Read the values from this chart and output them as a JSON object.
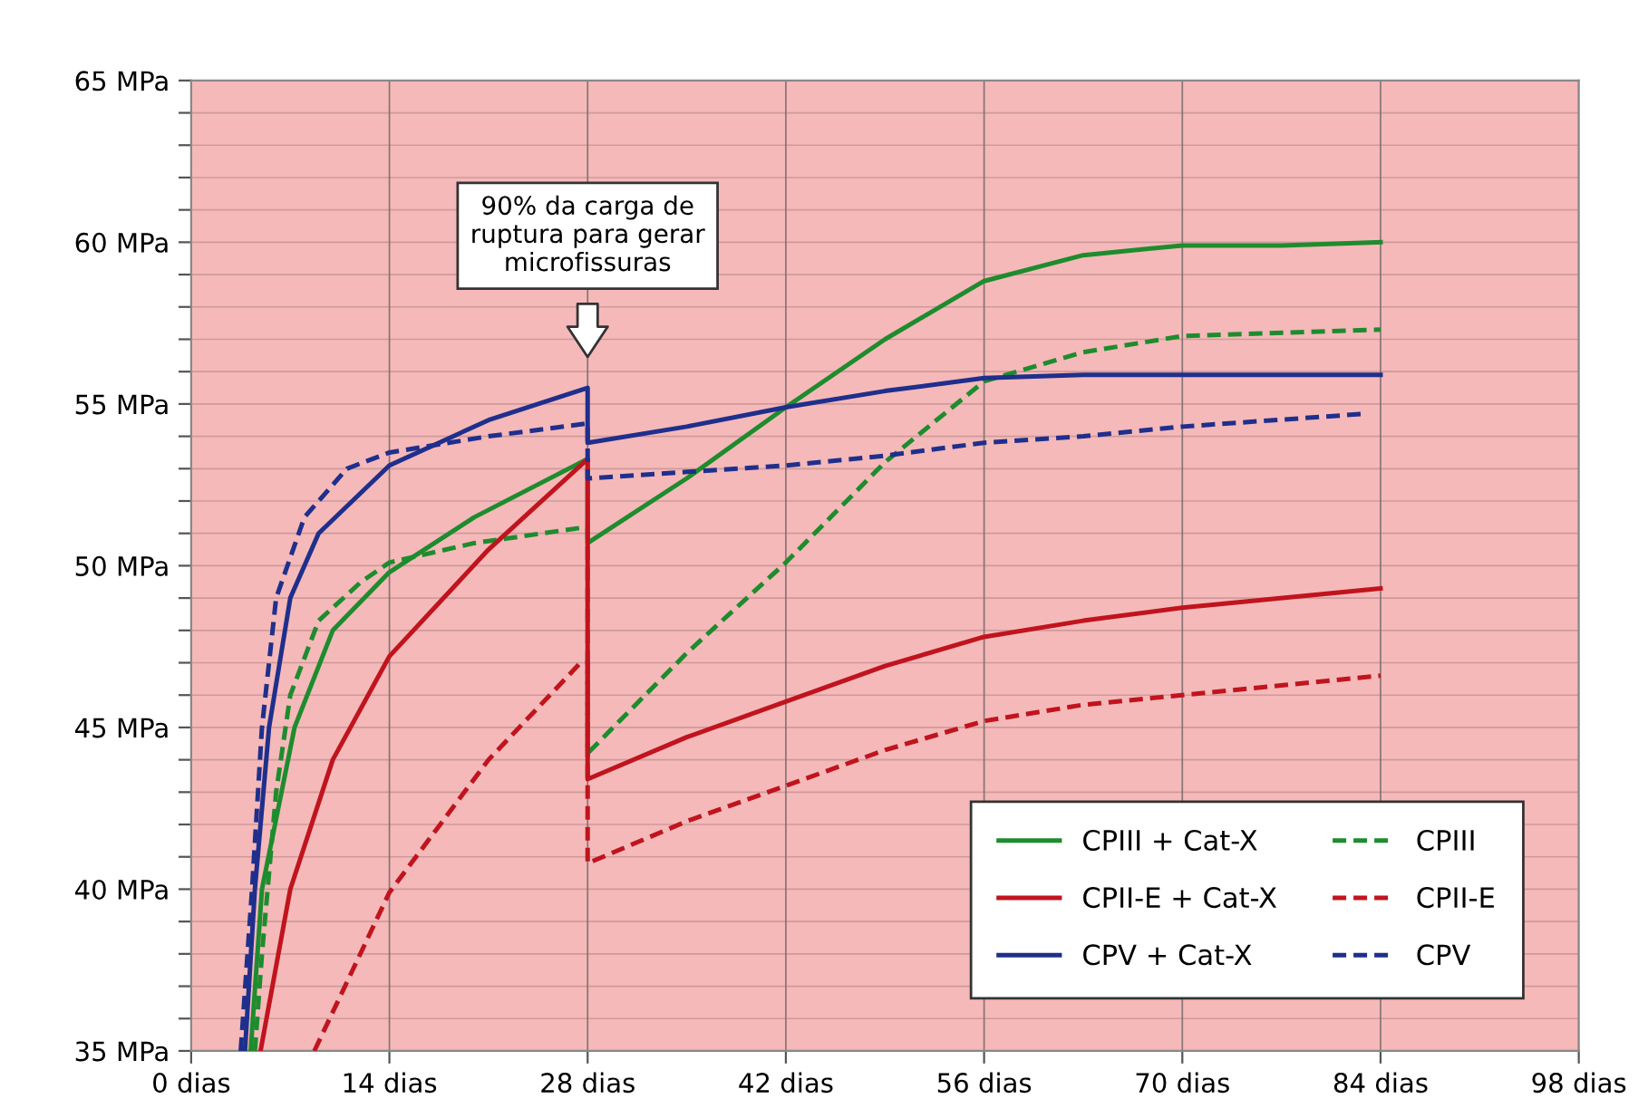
{
  "chart_data": {
    "type": "line",
    "xlim": [
      0,
      98
    ],
    "ylim": [
      35,
      65
    ],
    "xticks": [
      {
        "value": 0,
        "label": "0 dias"
      },
      {
        "value": 14,
        "label": "14 dias"
      },
      {
        "value": 28,
        "label": "28 dias"
      },
      {
        "value": 42,
        "label": "42 dias"
      },
      {
        "value": 56,
        "label": "56 dias"
      },
      {
        "value": 70,
        "label": "70 dias"
      },
      {
        "value": 84,
        "label": "84 dias"
      },
      {
        "value": 98,
        "label": "98 dias"
      }
    ],
    "yticks": [
      {
        "value": 35,
        "label": "35 MPa"
      },
      {
        "value": 36,
        "label": null
      },
      {
        "value": 37,
        "label": null
      },
      {
        "value": 38,
        "label": null
      },
      {
        "value": 39,
        "label": null
      },
      {
        "value": 40,
        "label": "40 MPa"
      },
      {
        "value": 41,
        "label": null
      },
      {
        "value": 42,
        "label": null
      },
      {
        "value": 43,
        "label": null
      },
      {
        "value": 44,
        "label": null
      },
      {
        "value": 45,
        "label": "45 MPa"
      },
      {
        "value": 46,
        "label": null
      },
      {
        "value": 47,
        "label": null
      },
      {
        "value": 48,
        "label": null
      },
      {
        "value": 49,
        "label": null
      },
      {
        "value": 50,
        "label": "50 MPa"
      },
      {
        "value": 51,
        "label": null
      },
      {
        "value": 52,
        "label": null
      },
      {
        "value": 53,
        "label": null
      },
      {
        "value": 54,
        "label": null
      },
      {
        "value": 55,
        "label": "55 MPa"
      },
      {
        "value": 56,
        "label": null
      },
      {
        "value": 57,
        "label": null
      },
      {
        "value": 58,
        "label": null
      },
      {
        "value": 59,
        "label": null
      },
      {
        "value": 60,
        "label": "60 MPa"
      },
      {
        "value": 61,
        "label": null
      },
      {
        "value": 62,
        "label": null
      },
      {
        "value": 63,
        "label": null
      },
      {
        "value": 64,
        "label": null
      },
      {
        "value": 65,
        "label": "65 MPa"
      }
    ],
    "grid": true,
    "legend": "bottom right",
    "marker": "none",
    "annotations": [
      "90% da carga de\nruptura para gerar\nmicrofissuras"
    ],
    "series": [
      {
        "name": "CPIII + Cat-X",
        "color": "#1e8c2e",
        "line_style": "solid",
        "x": [
          4.2,
          5,
          7.3,
          10,
          14,
          20,
          28,
          28,
          35,
          42,
          49,
          56,
          63,
          70,
          77,
          84
        ],
        "values": [
          35,
          40,
          45,
          48,
          49.8,
          51.5,
          53.3,
          50.7,
          52.7,
          54.9,
          57,
          58.8,
          59.6,
          59.9,
          59.9,
          60
        ]
      },
      {
        "name": "CPIII",
        "color": "#1e8c2e",
        "line_style": "dashed",
        "x": [
          4.5,
          5,
          6,
          7,
          9,
          12,
          14,
          20,
          28,
          28,
          35,
          42,
          49,
          56,
          63,
          70,
          84
        ],
        "values": [
          35,
          38,
          43,
          46,
          48.3,
          49.5,
          50.1,
          50.7,
          51.2,
          44.2,
          47.3,
          50.1,
          53.2,
          55.7,
          56.6,
          57.1,
          57.3
        ]
      },
      {
        "name": "CPII-E + Cat-X",
        "color": "#c0141e",
        "line_style": "solid",
        "x": [
          4.9,
          7,
          10,
          14,
          21,
          28,
          28,
          35,
          42,
          49,
          56,
          63,
          70,
          84
        ],
        "values": [
          35,
          40,
          44,
          47.2,
          50.5,
          53.3,
          43.4,
          44.7,
          45.8,
          46.9,
          47.8,
          48.3,
          48.7,
          49.3
        ]
      },
      {
        "name": "CPII-E",
        "color": "#c0141e",
        "line_style": "dashed",
        "x": [
          8.7,
          14,
          21,
          27.5,
          28,
          28,
          35,
          42,
          49,
          56,
          63,
          70,
          84
        ],
        "values": [
          35,
          39.9,
          44,
          47,
          47,
          40.8,
          42.1,
          43.2,
          44.3,
          45.2,
          45.7,
          46,
          46.6
        ]
      },
      {
        "name": "CPV + Cat-X",
        "color": "#1f2f8c",
        "line_style": "solid",
        "x": [
          3.8,
          4.5,
          5.5,
          7,
          9,
          14,
          21,
          28,
          28,
          35,
          42,
          49,
          56,
          63,
          70,
          84
        ],
        "values": [
          35,
          40,
          45,
          49,
          51,
          53.1,
          54.5,
          55.5,
          53.8,
          54.3,
          54.9,
          55.4,
          55.8,
          55.9,
          55.9,
          55.9
        ]
      },
      {
        "name": "CPV",
        "color": "#1f2f8c",
        "line_style": "dashed",
        "x": [
          3.5,
          4.3,
          5,
          6,
          8,
          11,
          14,
          21,
          28,
          28,
          35,
          42,
          49,
          56,
          63,
          70,
          83
        ],
        "values": [
          35,
          40,
          45,
          49,
          51.5,
          53,
          53.5,
          54,
          54.4,
          52.7,
          52.9,
          53.1,
          53.4,
          53.8,
          54,
          54.3,
          54.7
        ]
      }
    ]
  }
}
